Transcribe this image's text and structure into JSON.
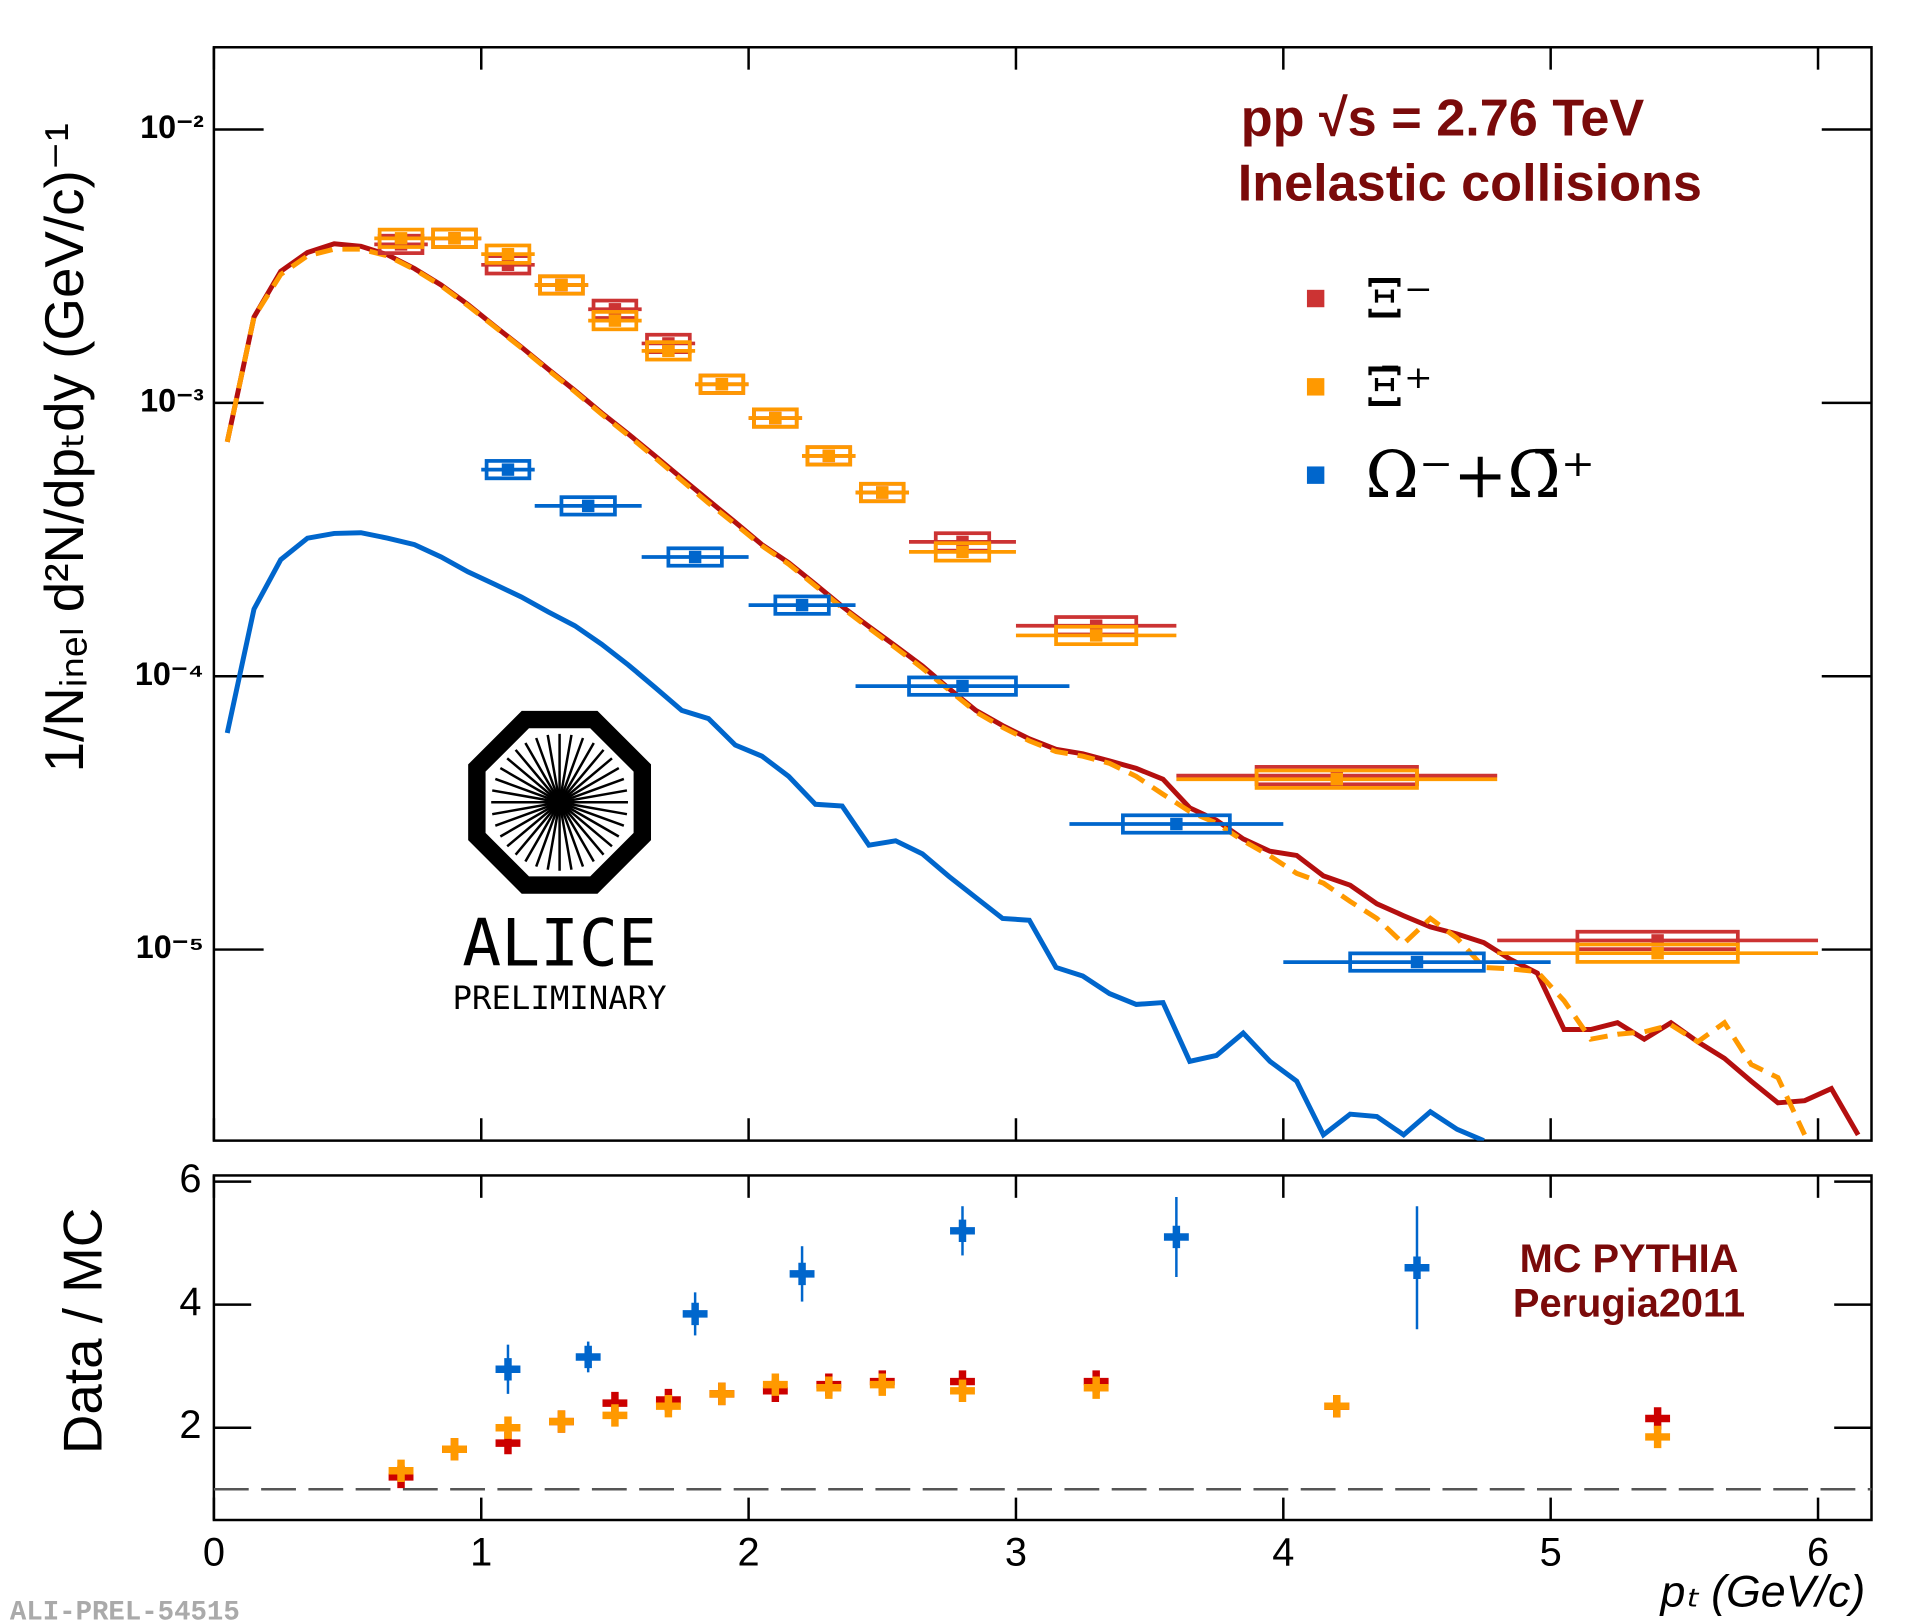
{
  "chart_data": [
    {
      "type": "errorbar",
      "log_y": true,
      "xlim": [
        0,
        6.2
      ],
      "ylim": [
        2e-06,
        0.02
      ],
      "yticks": [
        {
          "value": 0.01,
          "label": "10⁻²"
        },
        {
          "value": 0.001,
          "label": "10⁻³"
        },
        {
          "value": 0.0001,
          "label": "10⁻⁴"
        },
        {
          "value": 1e-05,
          "label": "10⁻⁵"
        }
      ],
      "ylabel": "1/Nᵢₙₑₗ d²N/dpₜdy (GeV/c)⁻¹",
      "annotations": [
        "pp  √s = 2.76 TeV",
        "Inelastic collisions"
      ],
      "series": [
        {
          "name": "Ξ⁻",
          "color": "#cc3333",
          "x": [
            0.7,
            0.9,
            1.1,
            1.3,
            1.5,
            1.7,
            1.9,
            2.1,
            2.3,
            2.5,
            2.8,
            3.3,
            4.2,
            5.4
          ],
          "xerr": [
            0.1,
            0.1,
            0.1,
            0.1,
            0.1,
            0.1,
            0.1,
            0.1,
            0.1,
            0.1,
            0.2,
            0.3,
            0.6,
            0.6
          ],
          "values": [
            0.0038,
            0.004,
            0.0032,
            0.0027,
            0.0022,
            0.00165,
            0.00117,
            0.00088,
            0.00064,
            0.00047,
            0.00031,
            0.000153,
            4.33e-05,
            1.08e-05
          ]
        },
        {
          "name": "Ξ̄⁺",
          "color": "#ff9900",
          "x": [
            0.7,
            0.9,
            1.1,
            1.3,
            1.5,
            1.7,
            1.9,
            2.1,
            2.3,
            2.5,
            2.8,
            3.3,
            4.2,
            5.4
          ],
          "xerr": [
            0.1,
            0.1,
            0.1,
            0.1,
            0.1,
            0.1,
            0.1,
            0.1,
            0.1,
            0.1,
            0.2,
            0.3,
            0.6,
            0.6
          ],
          "values": [
            0.004,
            0.004,
            0.0035,
            0.0027,
            0.002,
            0.00155,
            0.00117,
            0.00088,
            0.00064,
            0.00047,
            0.000285,
            0.000141,
            4.2e-05,
            9.7e-06
          ]
        },
        {
          "name": "Ω⁻+Ω̄⁺",
          "color": "#0066cc",
          "x": [
            1.1,
            1.4,
            1.8,
            2.2,
            2.8,
            3.6,
            4.5
          ],
          "xerr": [
            0.1,
            0.2,
            0.2,
            0.2,
            0.4,
            0.4,
            0.5
          ],
          "values": [
            0.00057,
            0.00042,
            0.000273,
            0.000182,
            9.2e-05,
            2.88e-05,
            9e-06
          ]
        }
      ],
      "curve_x": [
        0.05,
        0.15,
        0.25,
        0.35,
        0.45,
        0.55,
        0.65,
        0.75,
        0.85,
        0.95,
        1.05,
        1.15,
        1.25,
        1.35,
        1.45,
        1.55,
        1.65,
        1.75,
        1.85,
        1.95,
        2.05,
        2.15,
        2.25,
        2.35,
        2.45,
        2.55,
        2.65,
        2.75,
        2.85,
        2.95,
        3.05,
        3.15,
        3.25,
        3.35,
        3.45,
        3.55,
        3.65,
        3.75,
        3.85,
        3.95,
        4.05,
        4.15,
        4.25,
        4.35,
        4.45,
        4.55,
        4.65,
        4.75,
        4.85,
        4.95,
        5.05,
        5.15,
        5.25,
        5.35,
        5.45,
        5.55,
        5.65,
        5.75,
        5.85,
        5.95,
        6.05,
        6.15
      ],
      "curves": [
        {
          "color": "#b40f0f",
          "style": "solid",
          "values": [
            0.00072,
            0.00206,
            0.00303,
            0.00355,
            0.00382,
            0.00374,
            0.00348,
            0.0031,
            0.0027,
            0.00229,
            0.00191,
            0.0016,
            0.00133,
            0.00111,
            0.00092,
            0.00077,
            0.00064,
            0.00053,
            0.00044,
            0.000366,
            0.000303,
            0.00026,
            0.000217,
            0.00018,
            0.000152,
            0.000129,
            0.000109,
            9e-05,
            7.5e-05,
            6.6e-05,
            5.9e-05,
            5.4e-05,
            5.2e-05,
            4.9e-05,
            4.6e-05,
            4.2e-05,
            3.3e-05,
            2.97e-05,
            2.54e-05,
            2.29e-05,
            2.21e-05,
            1.86e-05,
            1.72e-05,
            1.47e-05,
            1.33e-05,
            1.21e-05,
            1.14e-05,
            1.06e-05,
            9.2e-06,
            8.2e-06,
            5.1e-06,
            5.1e-06,
            5.4e-06,
            4.7e-06,
            5.4e-06,
            4.6e-06,
            4e-06,
            3.3e-06,
            2.75e-06,
            2.8e-06,
            3.1e-06,
            2.1e-06
          ]
        },
        {
          "color": "#ff9900",
          "style": "dashed",
          "values": [
            0.00072,
            0.00206,
            0.00295,
            0.00345,
            0.00365,
            0.00365,
            0.00345,
            0.00308,
            0.00268,
            0.00227,
            0.0019,
            0.00159,
            0.00132,
            0.0011,
            0.00091,
            0.00076,
            0.00063,
            0.00052,
            0.00043,
            0.00036,
            0.0003,
            0.000257,
            0.000214,
            0.000178,
            0.00015,
            0.000127,
            0.000107,
            8.9e-05,
            7.4e-05,
            6.5e-05,
            5.8e-05,
            5.3e-05,
            5.1e-05,
            4.8e-05,
            4.3e-05,
            3.7e-05,
            3.2e-05,
            2.9e-05,
            2.5e-05,
            2.2e-05,
            1.9e-05,
            1.75e-05,
            1.5e-05,
            1.3e-05,
            1.05e-05,
            1.3e-05,
            1.1e-05,
            8.6e-06,
            8.5e-06,
            8.3e-06,
            6.5e-06,
            4.7e-06,
            4.9e-06,
            5e-06,
            5.3e-06,
            4.6e-06,
            5.4e-06,
            3.8e-06,
            3.4e-06,
            2.1e-06,
            null,
            null
          ]
        },
        {
          "color": "#0066cc",
          "style": "solid",
          "values": [
            6.2e-05,
            0.000176,
            0.000267,
            0.00032,
            0.000333,
            0.000335,
            0.00032,
            0.000303,
            0.000273,
            0.000241,
            0.000217,
            0.000195,
            0.000172,
            0.000153,
            0.000131,
            0.00011,
            9.1e-05,
            7.5e-05,
            7e-05,
            5.6e-05,
            5.1e-05,
            4.3e-05,
            3.4e-05,
            3.35e-05,
            2.41e-05,
            2.5e-05,
            2.24e-05,
            1.85e-05,
            1.55e-05,
            1.3e-05,
            1.28e-05,
            8.6e-06,
            8e-06,
            6.9e-06,
            6.3e-06,
            6.4e-06,
            3.9e-06,
            4.1e-06,
            4.95e-06,
            3.9e-06,
            3.3e-06,
            2.1e-06,
            2.5e-06,
            2.45e-06,
            2.1e-06,
            2.55e-06,
            2.2e-06,
            2e-06,
            null,
            null,
            null,
            null,
            null,
            null,
            null,
            null,
            null,
            null,
            null,
            null,
            null,
            null
          ]
        }
      ]
    },
    {
      "type": "errorbar",
      "xlim": [
        0,
        6.2
      ],
      "ylim": [
        0.5,
        6.1
      ],
      "xticks": [
        0,
        1,
        2,
        3,
        4,
        5,
        6
      ],
      "yticks": [
        2,
        4,
        6
      ],
      "xlabel": "pₜ (GeV/c)",
      "ylabel": "Data / MC",
      "reference_line": 1,
      "annotations": [
        "MC PYTHIA",
        "Perugia2011"
      ],
      "series": [
        {
          "name": "Ξ⁻",
          "color": "#cc0000",
          "x": [
            0.7,
            0.9,
            1.1,
            1.3,
            1.5,
            1.7,
            1.9,
            2.1,
            2.3,
            2.5,
            2.8,
            3.3,
            4.2,
            5.4
          ],
          "values": [
            1.2,
            1.65,
            1.75,
            2.1,
            2.4,
            2.45,
            2.55,
            2.6,
            2.7,
            2.75,
            2.75,
            2.75,
            2.35,
            2.15
          ]
        },
        {
          "name": "Ξ̄⁺",
          "color": "#ff9900",
          "x": [
            0.7,
            0.9,
            1.1,
            1.3,
            1.5,
            1.7,
            1.9,
            2.1,
            2.3,
            2.5,
            2.8,
            3.3,
            4.2,
            5.4
          ],
          "values": [
            1.3,
            1.65,
            2.0,
            2.1,
            2.2,
            2.35,
            2.55,
            2.7,
            2.65,
            2.7,
            2.6,
            2.65,
            2.35,
            1.85
          ]
        },
        {
          "name": "Ω⁻+Ω̄⁺",
          "color": "#0066cc",
          "x": [
            1.1,
            1.4,
            1.8,
            2.2,
            2.8,
            3.6,
            4.5
          ],
          "values": [
            2.95,
            3.15,
            3.85,
            4.5,
            5.2,
            5.1,
            4.6
          ],
          "yerr": [
            0.4,
            0.25,
            0.35,
            0.45,
            0.4,
            0.65,
            1.0
          ]
        }
      ]
    }
  ],
  "logo": {
    "name": "ALICE",
    "tag": "PRELIMINARY"
  },
  "footer": "ALI-PREL-54515"
}
